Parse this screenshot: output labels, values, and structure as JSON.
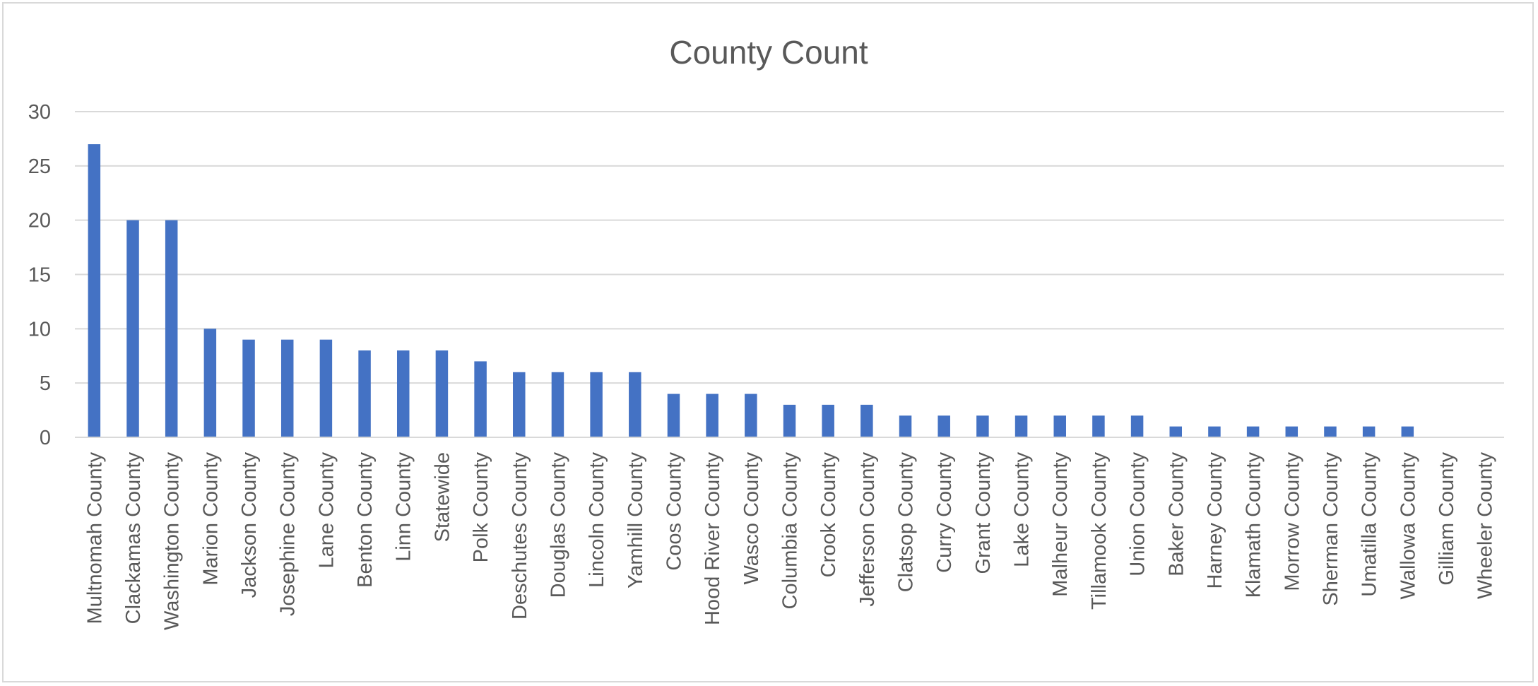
{
  "chart_data": {
    "type": "bar",
    "title": "County Count",
    "xlabel": "",
    "ylabel": "",
    "ylim": [
      0,
      30
    ],
    "yticks": [
      0,
      5,
      10,
      15,
      20,
      25,
      30
    ],
    "grid": true,
    "legend": "none",
    "bar_color": "#4472C4",
    "gridline_color": "#d9d9d9",
    "text_color": "#595959",
    "categories": [
      "Multnomah County",
      "Clackamas County",
      "Washington County",
      "Marion County",
      "Jackson County",
      "Josephine County",
      "Lane County",
      "Benton County",
      "Linn County",
      "Statewide",
      "Polk County",
      "Deschutes County",
      "Douglas County",
      "Lincoln County",
      "Yamhill County",
      "Coos County",
      "Hood River County",
      "Wasco County",
      "Columbia County",
      "Crook County",
      "Jefferson County",
      "Clatsop County",
      "Curry County",
      "Grant County",
      "Lake County",
      "Malheur County",
      "Tillamook County",
      "Union County",
      "Baker County",
      "Harney County",
      "Klamath County",
      "Morrow County",
      "Sherman County",
      "Umatilla County",
      "Wallowa County",
      "Gilliam County",
      "Wheeler County"
    ],
    "values": [
      27,
      20,
      20,
      10,
      9,
      9,
      9,
      8,
      8,
      8,
      7,
      6,
      6,
      6,
      6,
      4,
      4,
      4,
      3,
      3,
      3,
      2,
      2,
      2,
      2,
      2,
      2,
      2,
      1,
      1,
      1,
      1,
      1,
      1,
      1,
      0,
      0
    ]
  }
}
